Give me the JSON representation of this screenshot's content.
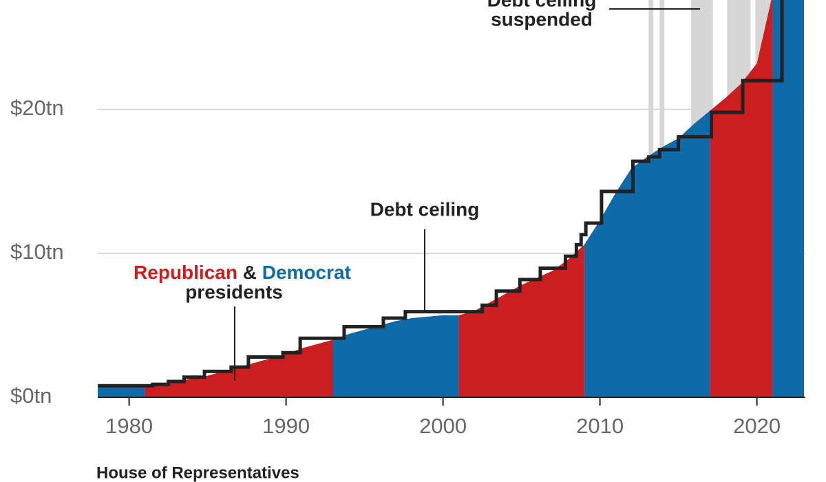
{
  "chart_data": {
    "type": "area",
    "x": [
      1978,
      1979,
      1980,
      1981,
      1982,
      1983,
      1984,
      1985,
      1986,
      1987,
      1988,
      1989,
      1990,
      1991,
      1992,
      1993,
      1994,
      1995,
      1996,
      1997,
      1998,
      1999,
      2000,
      2001,
      2002,
      2003,
      2004,
      2005,
      2006,
      2007,
      2008,
      2009,
      2010,
      2011,
      2012,
      2013,
      2014,
      2015,
      2016,
      2017,
      2018,
      2019,
      2020,
      2021,
      2022,
      2023
    ],
    "series": [
      {
        "name": "Republican",
        "color": "#cc1d1f",
        "values": [
          null,
          null,
          null,
          0.85,
          0.95,
          1.1,
          1.3,
          1.5,
          1.8,
          2.1,
          2.4,
          2.7,
          3.0,
          3.4,
          3.7,
          4.0,
          null,
          null,
          null,
          null,
          null,
          null,
          null,
          5.7,
          6.0,
          6.6,
          7.2,
          7.8,
          8.3,
          8.8,
          9.6,
          10.6,
          null,
          null,
          null,
          null,
          null,
          null,
          null,
          19.9,
          20.8,
          21.8,
          23.2,
          28.0,
          null,
          null
        ]
      },
      {
        "name": "Democrat",
        "color": "#0f6aa8",
        "values": [
          0.72,
          0.76,
          0.8,
          0.85,
          null,
          null,
          null,
          null,
          null,
          null,
          null,
          null,
          null,
          null,
          null,
          4.0,
          4.4,
          4.7,
          5.0,
          5.3,
          5.5,
          5.6,
          5.7,
          5.7,
          null,
          null,
          null,
          null,
          null,
          null,
          null,
          10.6,
          12.3,
          14.2,
          15.9,
          16.7,
          17.4,
          18.0,
          19.0,
          19.9,
          null,
          null,
          null,
          28.0,
          31.0,
          31.5
        ]
      }
    ],
    "legend": {
      "joiner": "&",
      "suffix": "presidents"
    },
    "debt_ceiling": {
      "name": "Debt ceiling",
      "color": "#222222",
      "x": [
        1978,
        1981.5,
        1982.5,
        1983.5,
        1984.8,
        1986.5,
        1987.6,
        1989.8,
        1990.9,
        1993.7,
        1996.2,
        1997.6,
        2002.5,
        2003.4,
        2004.9,
        2006.2,
        2007.8,
        2008.5,
        2008.8,
        2009.1,
        2010.1,
        2012.1,
        2013.1,
        2013.8,
        2015.0,
        2017.1,
        2019.1,
        2021.6,
        2023
      ],
      "values": [
        0.8,
        0.9,
        1.1,
        1.4,
        1.8,
        2.1,
        2.8,
        3.1,
        4.1,
        4.9,
        5.5,
        5.95,
        6.4,
        7.38,
        8.18,
        8.97,
        9.8,
        10.6,
        11.3,
        12.1,
        14.3,
        16.4,
        16.7,
        17.2,
        18.1,
        19.8,
        22.0,
        28.9,
        31.4
      ]
    },
    "suspended": {
      "label_lines": [
        "Debt ceiling",
        "suspended"
      ],
      "color": "#d6d6d6",
      "spans": [
        [
          2013.1,
          2013.4
        ],
        [
          2013.8,
          2014.1
        ],
        [
          2015.8,
          2017.2
        ],
        [
          2018.1,
          2019.6
        ],
        [
          2019.9,
          2021.1
        ]
      ]
    },
    "xlim": [
      1978,
      2023
    ],
    "xticks": [
      1980,
      1990,
      2000,
      2010,
      2020
    ],
    "ylim": [
      0,
      27.6
    ],
    "yticks": [
      {
        "value": 0,
        "label": "$0tn"
      },
      {
        "value": 10,
        "label": "$10tn"
      },
      {
        "value": 20,
        "label": "$20tn"
      }
    ],
    "grid": true,
    "footer": "House of Representatives"
  }
}
